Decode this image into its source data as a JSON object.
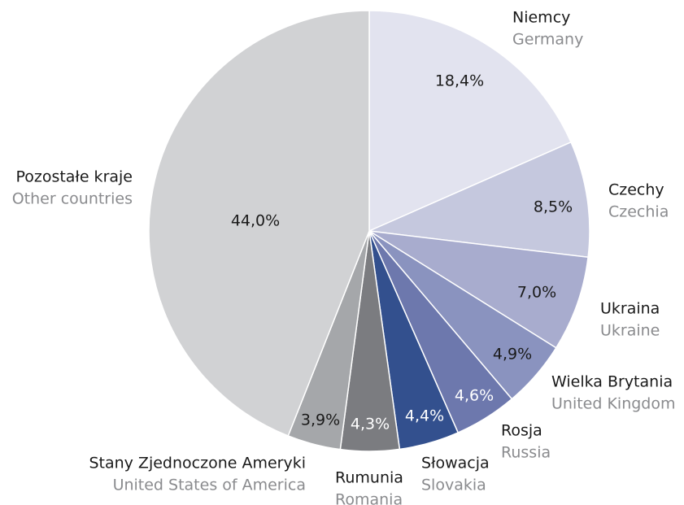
{
  "chart_data": {
    "type": "pie",
    "categories": [
      "Niemcy",
      "Czechy",
      "Ukraina",
      "Wielka Brytania",
      "Rosja",
      "Słowacja",
      "Rumunia",
      "Stany Zjednoczone Ameryki",
      "Pozostałe kraje"
    ],
    "categories_en": [
      "Germany",
      "Czechia",
      "Ukraine",
      "United Kingdom",
      "Russia",
      "Slovakia",
      "Romania",
      "United States of America",
      "Other countries"
    ],
    "values": [
      18.4,
      8.5,
      7.0,
      4.9,
      4.6,
      4.4,
      4.3,
      3.9,
      44.0
    ],
    "value_labels": [
      "18,4%",
      "8,5%",
      "7,0%",
      "4,9%",
      "4,6%",
      "4,4%",
      "4,3%",
      "3,9%",
      "44,0%"
    ],
    "colors": [
      "#e2e3ef",
      "#c5c8de",
      "#a8acce",
      "#8a93bf",
      "#6d78ad",
      "#33508e",
      "#7b7c80",
      "#a5a7aa",
      "#d1d2d4"
    ]
  }
}
